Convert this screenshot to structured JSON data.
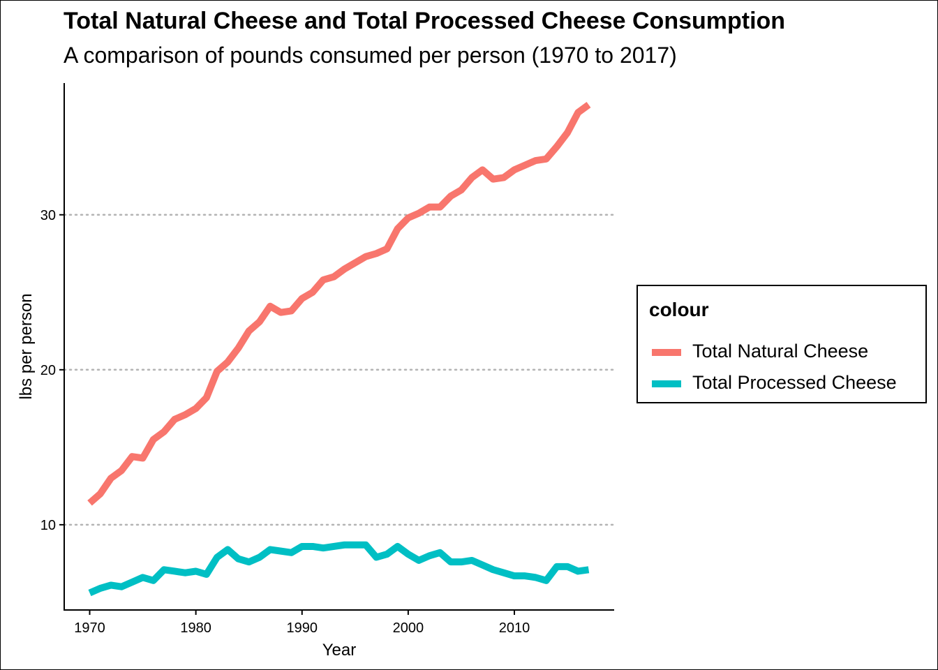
{
  "title": "Total Natural Cheese and Total Processed Cheese Consumption",
  "subtitle": "A comparison of pounds consumed per person (1970 to 2017)",
  "legend": {
    "title": "colour",
    "items": [
      {
        "label": "Total Natural Cheese",
        "color": "#F8766D"
      },
      {
        "label": "Total Processed Cheese",
        "color": "#00BFC4"
      }
    ]
  },
  "chart_data": {
    "type": "line",
    "title": "Total Natural Cheese and Total Processed Cheese Consumption",
    "subtitle": "A comparison of pounds consumed per person (1970 to 2017)",
    "xlabel": "Year",
    "ylabel": "lbs per person",
    "x_ticks": [
      1970,
      1980,
      1990,
      2000,
      2010
    ],
    "y_ticks": [
      10,
      20,
      30
    ],
    "xlim": [
      1967.6,
      2019.4
    ],
    "ylim": [
      4.5,
      38.5
    ],
    "grid": "horizontal dotted at major y ticks",
    "legend_position": "right",
    "x": [
      1970,
      1971,
      1972,
      1973,
      1974,
      1975,
      1976,
      1977,
      1978,
      1979,
      1980,
      1981,
      1982,
      1983,
      1984,
      1985,
      1986,
      1987,
      1988,
      1989,
      1990,
      1991,
      1992,
      1993,
      1994,
      1995,
      1996,
      1997,
      1998,
      1999,
      2000,
      2001,
      2002,
      2003,
      2004,
      2005,
      2006,
      2007,
      2008,
      2009,
      2010,
      2011,
      2012,
      2013,
      2014,
      2015,
      2016,
      2017
    ],
    "series": [
      {
        "name": "Total Natural Cheese",
        "color": "#F8766D",
        "values": [
          11.4,
          12.0,
          13.0,
          13.5,
          14.4,
          14.3,
          15.5,
          16.0,
          16.8,
          17.1,
          17.5,
          18.2,
          19.9,
          20.5,
          21.4,
          22.5,
          23.1,
          24.1,
          23.7,
          23.8,
          24.6,
          25.0,
          25.8,
          26.0,
          26.5,
          26.9,
          27.3,
          27.5,
          27.8,
          29.1,
          29.8,
          30.1,
          30.5,
          30.5,
          31.2,
          31.6,
          32.4,
          32.9,
          32.3,
          32.4,
          32.9,
          33.2,
          33.5,
          33.6,
          34.4,
          35.3,
          36.6,
          37.1
        ]
      },
      {
        "name": "Total Processed Cheese",
        "color": "#00BFC4",
        "values": [
          5.6,
          5.9,
          6.1,
          6.0,
          6.3,
          6.6,
          6.4,
          7.1,
          7.0,
          6.9,
          7.0,
          6.8,
          7.9,
          8.4,
          7.8,
          7.6,
          7.9,
          8.4,
          8.3,
          8.2,
          8.6,
          8.6,
          8.5,
          8.6,
          8.7,
          8.7,
          8.7,
          7.9,
          8.1,
          8.6,
          8.1,
          7.7,
          8.0,
          8.2,
          7.6,
          7.6,
          7.7,
          7.4,
          7.1,
          6.9,
          6.7,
          6.7,
          6.6,
          6.4,
          7.3,
          7.3,
          7.0,
          7.1
        ]
      }
    ]
  }
}
